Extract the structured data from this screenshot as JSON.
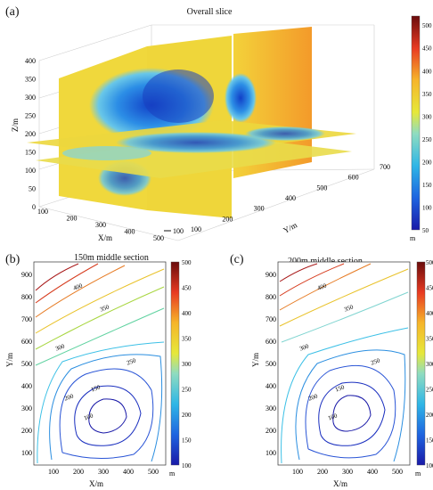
{
  "chart_data": [
    {
      "type": "heatmap",
      "panel": "(a)",
      "title": "Overall slice",
      "xlabel": "X/m",
      "ylabel": "Y/m",
      "zlabel": "Z/m",
      "x_ticks": [
        "100",
        "200",
        "300",
        "400",
        "500"
      ],
      "y_ticks": [
        "100",
        "200",
        "300",
        "400",
        "500",
        "600",
        "700"
      ],
      "z_ticks": [
        "0",
        "50",
        "100",
        "150",
        "200",
        "250",
        "300",
        "350",
        "400"
      ],
      "colorbar_ticks": [
        "50",
        "100",
        "150",
        "200",
        "250",
        "300",
        "350",
        "400",
        "450",
        "500"
      ],
      "colorbar_unit": "m",
      "colorbar_range": [
        50,
        520
      ],
      "floating_label": "100"
    },
    {
      "type": "contour",
      "panel": "(b)",
      "title": "150m middle section",
      "xlabel": "X/m",
      "ylabel": "Y/m",
      "x_ticks": [
        "100",
        "200",
        "300",
        "400",
        "500"
      ],
      "y_ticks": [
        "100",
        "200",
        "300",
        "400",
        "500",
        "600",
        "700",
        "800",
        "900"
      ],
      "colorbar_ticks": [
        "100",
        "150",
        "200",
        "250",
        "300",
        "350",
        "400",
        "450",
        "500"
      ],
      "colorbar_unit": "m",
      "contour_labels": [
        "100",
        "150",
        "200",
        "250",
        "300",
        "350",
        "400"
      ]
    },
    {
      "type": "contour",
      "panel": "(c)",
      "title": "200m middle section",
      "xlabel": "X/m",
      "ylabel": "Y/m",
      "x_ticks": [
        "100",
        "200",
        "300",
        "400",
        "500"
      ],
      "y_ticks": [
        "100",
        "200",
        "300",
        "400",
        "500",
        "600",
        "700",
        "800",
        "900"
      ],
      "colorbar_ticks": [
        "100",
        "150",
        "200",
        "250",
        "300",
        "350",
        "400",
        "450",
        "500"
      ],
      "colorbar_unit": "m",
      "contour_labels": [
        "100",
        "150",
        "200",
        "250",
        "300",
        "350",
        "400"
      ]
    }
  ]
}
